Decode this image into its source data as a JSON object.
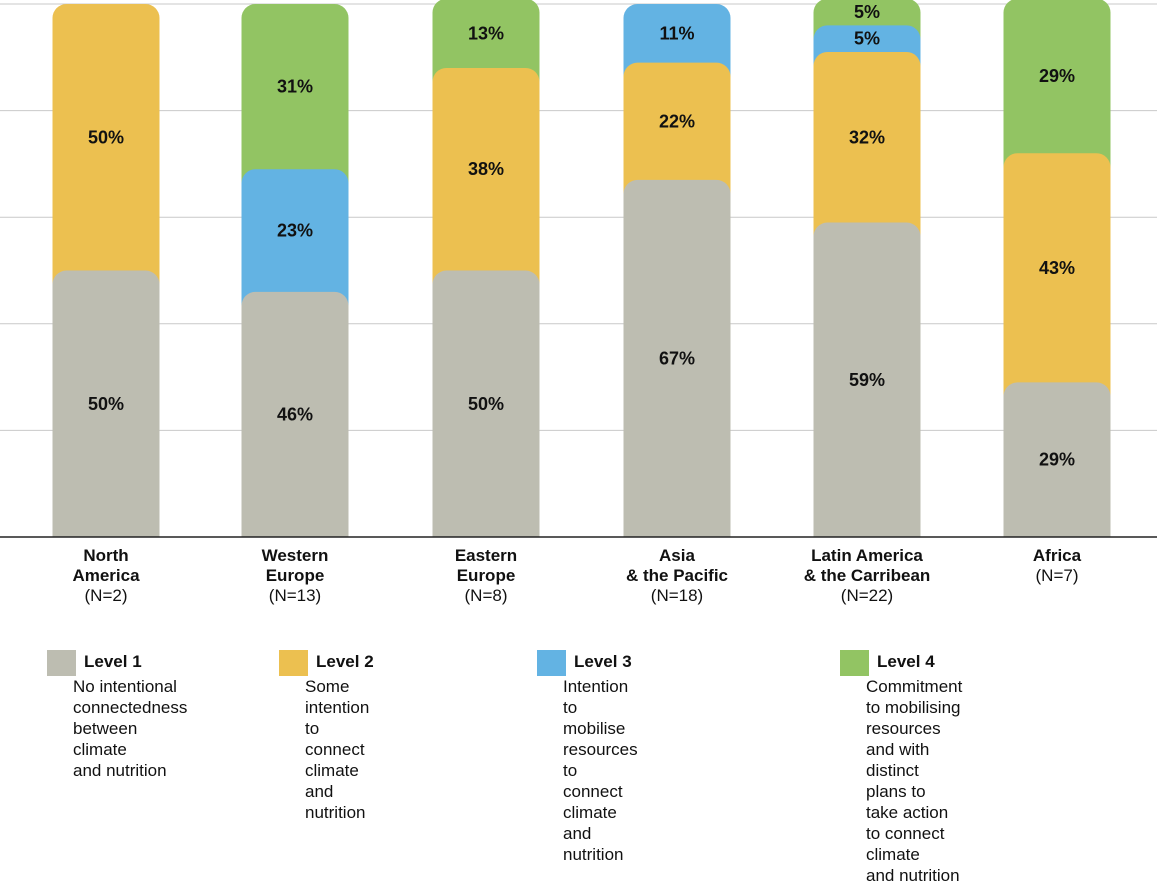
{
  "chart_data": {
    "type": "bar",
    "stacked": true,
    "categories": [
      {
        "name": "North\nAmerica",
        "n": "(N=2)"
      },
      {
        "name": "Western\nEurope",
        "n": "(N=13)"
      },
      {
        "name": "Eastern\nEurope",
        "n": "(N=8)"
      },
      {
        "name": "Asia\n& the Pacific",
        "n": "(N=18)"
      },
      {
        "name": "Latin America\n& the Carribean",
        "n": "(N=22)"
      },
      {
        "name": "Africa",
        "n": "(N=7)"
      }
    ],
    "series": [
      {
        "name": "Level 1",
        "description": "No intentional\nconnectedness\nbetween climate\nand nutrition",
        "color": "#bdbdb1",
        "values": [
          50,
          46,
          50,
          67,
          59,
          29
        ]
      },
      {
        "name": "Level 2",
        "description": "Some intention\nto connect climate\nand nutrition",
        "color": "#ecc050",
        "values": [
          50,
          0,
          38,
          22,
          32,
          43
        ]
      },
      {
        "name": "Level 3",
        "description": "Intention to mobilise\nresources to connect\nclimate and nutrition",
        "color": "#63b3e3",
        "values": [
          0,
          23,
          0,
          11,
          5,
          0
        ]
      },
      {
        "name": "Level 4",
        "description": "Commitment to mobilising\nresources and with distinct\nplans to take action\nto connect climate\nand nutrition",
        "color": "#92c463",
        "values": [
          0,
          31,
          13,
          0,
          5,
          29
        ]
      }
    ],
    "value_suffix": "%",
    "ylim": [
      0,
      100
    ],
    "grid": true,
    "legend": "bottom"
  }
}
